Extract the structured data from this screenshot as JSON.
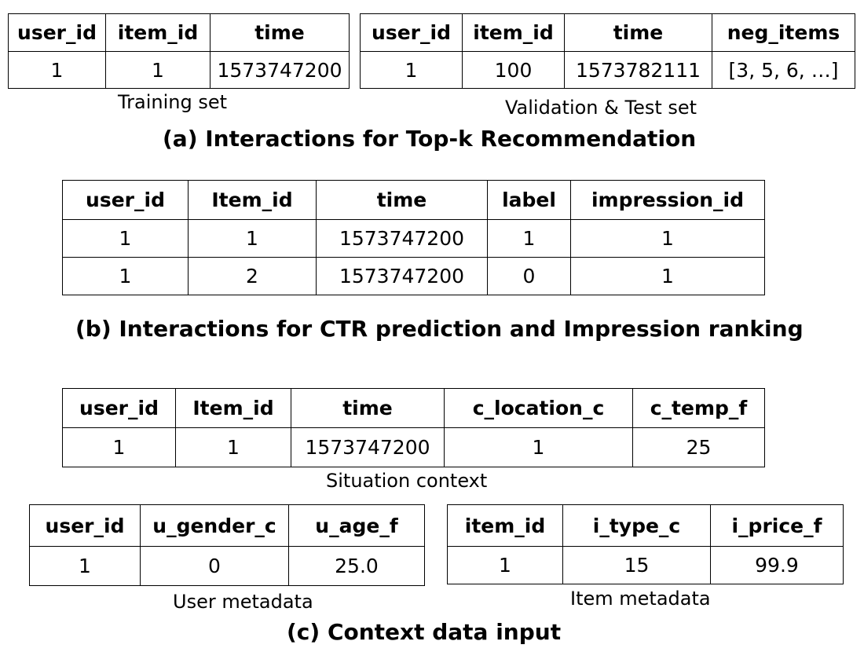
{
  "section_a": {
    "title": "(a) Interactions for Top-k Recommendation",
    "training": {
      "caption": "Training set",
      "headers": [
        "user_id",
        "item_id",
        "time"
      ],
      "rows": [
        [
          "1",
          "1",
          "1573747200"
        ]
      ]
    },
    "validation": {
      "caption": "Validation & Test set",
      "headers": [
        "user_id",
        "item_id",
        "time",
        "neg_items"
      ],
      "rows": [
        [
          "1",
          "100",
          "1573782111",
          "[3, 5, 6, …]"
        ]
      ]
    }
  },
  "section_b": {
    "title": "(b) Interactions for CTR prediction and Impression ranking",
    "table": {
      "headers": [
        "user_id",
        "Item_id",
        "time",
        "label",
        "impression_id"
      ],
      "rows": [
        [
          "1",
          "1",
          "1573747200",
          "1",
          "1"
        ],
        [
          "1",
          "2",
          "1573747200",
          "0",
          "1"
        ]
      ]
    }
  },
  "section_c": {
    "title": "(c) Context data input",
    "situation": {
      "caption": "Situation context",
      "headers": [
        "user_id",
        "Item_id",
        "time",
        "c_location_c",
        "c_temp_f"
      ],
      "rows": [
        [
          "1",
          "1",
          "1573747200",
          "1",
          "25"
        ]
      ]
    },
    "user_meta": {
      "caption": "User metadata",
      "headers": [
        "user_id",
        "u_gender_c",
        "u_age_f"
      ],
      "rows": [
        [
          "1",
          "0",
          "25.0"
        ]
      ]
    },
    "item_meta": {
      "caption": "Item metadata",
      "headers": [
        "item_id",
        "i_type_c",
        "i_price_f"
      ],
      "rows": [
        [
          "1",
          "15",
          "99.9"
        ]
      ]
    }
  }
}
